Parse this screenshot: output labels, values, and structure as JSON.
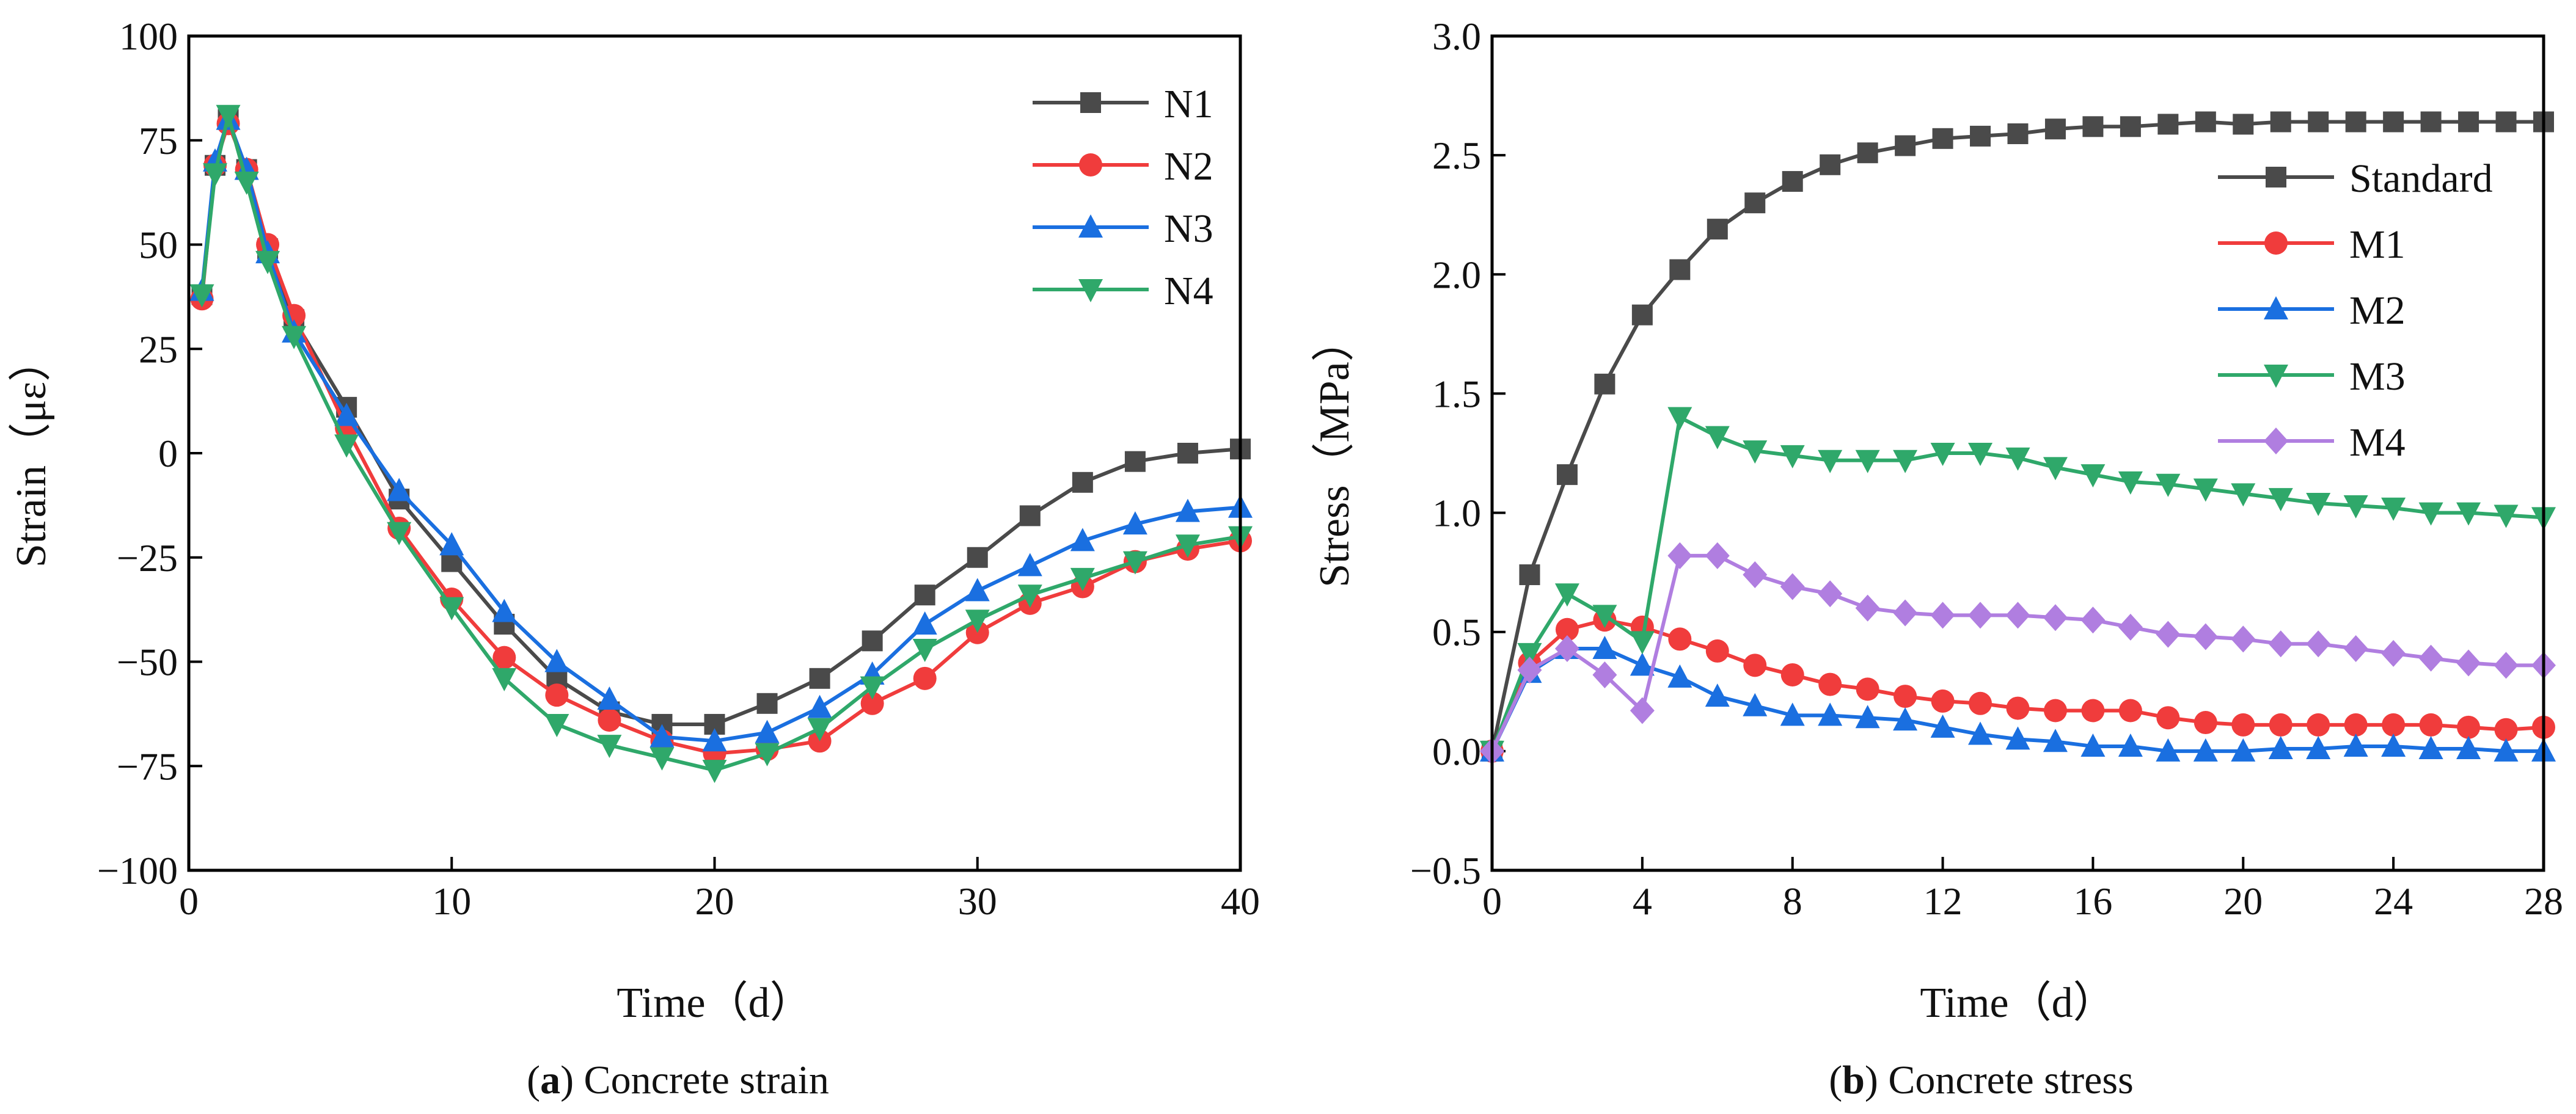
{
  "chart_data": [
    {
      "type": "line",
      "title": "",
      "xlabel": "Time（d）",
      "ylabel": "Strain（με）",
      "xlim": [
        0,
        40
      ],
      "ylim": [
        -100,
        100
      ],
      "xticks": [
        0,
        10,
        20,
        30,
        40
      ],
      "yticks": [
        -100,
        -75,
        -50,
        -25,
        0,
        25,
        50,
        75,
        100
      ],
      "legend_position": "top-right",
      "grid": false,
      "x": [
        0.5,
        1,
        1.5,
        2.2,
        3,
        4,
        6,
        8,
        10,
        12,
        14,
        16,
        18,
        20,
        22,
        24,
        26,
        28,
        30,
        32,
        34,
        36,
        38,
        40
      ],
      "series": [
        {
          "name": "N1",
          "color": "#4a4a4a",
          "marker": "square",
          "values": [
            38,
            69,
            80,
            68,
            49,
            32,
            11,
            -11,
            -26,
            -41,
            -54,
            -62,
            -65,
            -65,
            -60,
            -54,
            -45,
            -34,
            -25,
            -15,
            -7,
            -2,
            0,
            1
          ]
        },
        {
          "name": "N2",
          "color": "#f03c3c",
          "marker": "circle",
          "values": [
            37,
            69,
            79,
            68,
            50,
            33,
            6,
            -18,
            -35,
            -49,
            -58,
            -64,
            -69,
            -72,
            -71,
            -69,
            -60,
            -54,
            -43,
            -36,
            -32,
            -26,
            -23,
            -21
          ]
        },
        {
          "name": "N3",
          "color": "#1a6fe0",
          "marker": "triangle-up",
          "values": [
            39,
            70,
            80,
            68,
            48,
            29,
            9,
            -9,
            -22,
            -38,
            -50,
            -59,
            -68,
            -69,
            -67,
            -61,
            -53,
            -41,
            -33,
            -27,
            -21,
            -17,
            -14,
            -13
          ]
        },
        {
          "name": "N4",
          "color": "#2fa86a",
          "marker": "triangle-down",
          "values": [
            38,
            67,
            81,
            65,
            46,
            28,
            2,
            -19,
            -37,
            -54,
            -65,
            -70,
            -73,
            -76,
            -72,
            -66,
            -56,
            -47,
            -40,
            -34,
            -30,
            -26,
            -22,
            -20
          ]
        }
      ],
      "caption": {
        "prefix": "(",
        "letter": "a",
        "suffix": ")",
        "text": " Concrete strain"
      }
    },
    {
      "type": "line",
      "title": "",
      "xlabel": "Time（d）",
      "ylabel": "Stress（MPa）",
      "xlim": [
        0,
        28
      ],
      "ylim": [
        -0.5,
        3.0
      ],
      "xticks": [
        0,
        4,
        8,
        12,
        16,
        20,
        24,
        28
      ],
      "yticks": [
        -0.5,
        0.0,
        0.5,
        1.0,
        1.5,
        2.0,
        2.5,
        3.0
      ],
      "legend_position": "top-right",
      "grid": false,
      "x": [
        0,
        1,
        2,
        3,
        4,
        5,
        6,
        7,
        8,
        9,
        10,
        11,
        12,
        13,
        14,
        15,
        16,
        17,
        18,
        19,
        20,
        21,
        22,
        23,
        24,
        25,
        26,
        27,
        28
      ],
      "series": [
        {
          "name": "Standard",
          "color": "#4a4a4a",
          "marker": "square",
          "values": [
            0,
            0.74,
            1.16,
            1.54,
            1.83,
            2.02,
            2.19,
            2.3,
            2.39,
            2.46,
            2.51,
            2.54,
            2.57,
            2.58,
            2.59,
            2.61,
            2.62,
            2.62,
            2.63,
            2.64,
            2.63,
            2.64,
            2.64,
            2.64,
            2.64,
            2.64,
            2.64,
            2.64,
            2.64
          ]
        },
        {
          "name": "M1",
          "color": "#f03c3c",
          "marker": "circle",
          "values": [
            0,
            0.37,
            0.51,
            0.55,
            0.52,
            0.47,
            0.42,
            0.36,
            0.32,
            0.28,
            0.26,
            0.23,
            0.21,
            0.2,
            0.18,
            0.17,
            0.17,
            0.17,
            0.14,
            0.12,
            0.11,
            0.11,
            0.11,
            0.11,
            0.11,
            0.11,
            0.1,
            0.09,
            0.1
          ]
        },
        {
          "name": "M2",
          "color": "#1a6fe0",
          "marker": "triangle-up",
          "values": [
            0,
            0.33,
            0.43,
            0.43,
            0.36,
            0.31,
            0.23,
            0.19,
            0.15,
            0.15,
            0.14,
            0.13,
            0.1,
            0.07,
            0.05,
            0.04,
            0.02,
            0.02,
            0.0,
            0.0,
            0.0,
            0.01,
            0.01,
            0.02,
            0.02,
            0.01,
            0.01,
            0.0,
            0.0
          ]
        },
        {
          "name": "M3",
          "color": "#2fa86a",
          "marker": "triangle-down",
          "values": [
            0,
            0.41,
            0.66,
            0.57,
            0.46,
            1.4,
            1.32,
            1.26,
            1.24,
            1.22,
            1.22,
            1.22,
            1.25,
            1.25,
            1.23,
            1.19,
            1.16,
            1.13,
            1.12,
            1.1,
            1.08,
            1.06,
            1.04,
            1.03,
            1.02,
            1.0,
            1.0,
            0.99,
            0.98
          ]
        },
        {
          "name": "M4",
          "color": "#b07ee0",
          "marker": "diamond",
          "values": [
            0,
            0.34,
            0.43,
            0.32,
            0.17,
            0.82,
            0.82,
            0.74,
            0.69,
            0.66,
            0.6,
            0.58,
            0.57,
            0.57,
            0.57,
            0.56,
            0.55,
            0.52,
            0.49,
            0.48,
            0.47,
            0.45,
            0.45,
            0.43,
            0.41,
            0.39,
            0.37,
            0.36,
            0.36
          ]
        }
      ],
      "caption": {
        "prefix": "(",
        "letter": "b",
        "suffix": ")",
        "text": " Concrete stress"
      }
    }
  ]
}
